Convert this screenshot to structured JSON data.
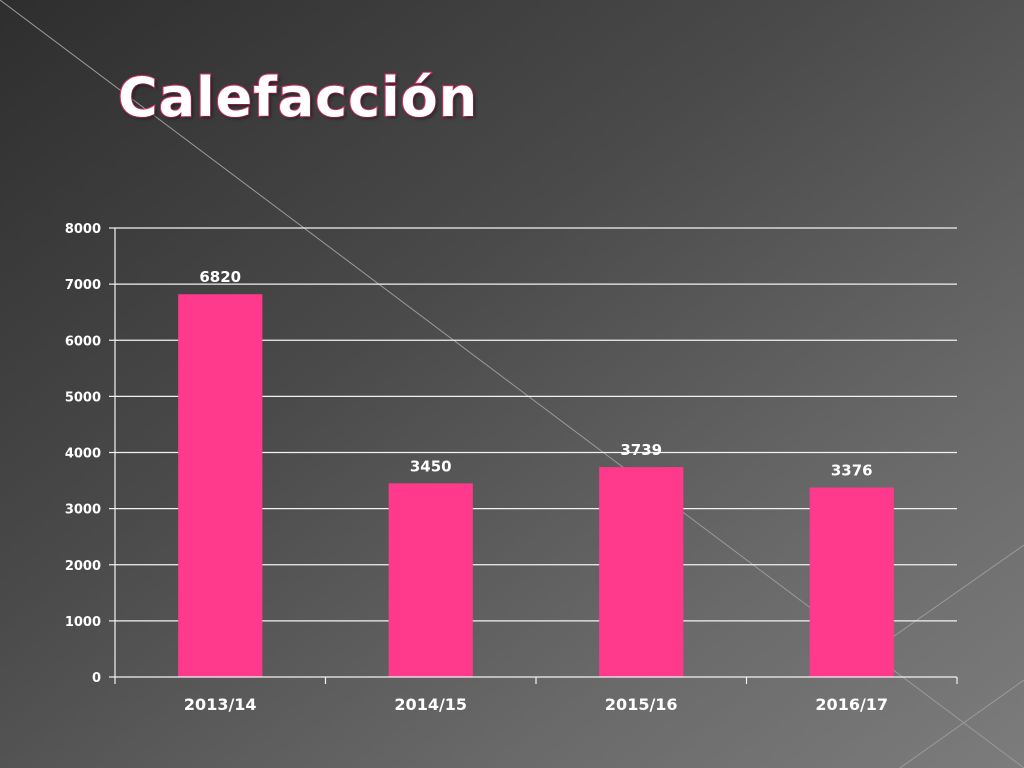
{
  "slide": {
    "title": "Calefacción"
  },
  "colors": {
    "bar": "#ff3a8c",
    "title_outline": "#e0306f",
    "gridline": "#f2f2f2",
    "text": "#ffffff"
  },
  "chart_data": {
    "type": "bar",
    "title": "",
    "xlabel": "",
    "ylabel": "",
    "categories": [
      "2013/14",
      "2014/15",
      "2015/16",
      "2016/17"
    ],
    "values": [
      6820,
      3450,
      3739,
      3376
    ],
    "data_labels": [
      "6820",
      "3450",
      "3739",
      "3376"
    ],
    "ylim": [
      0,
      8000
    ],
    "yticks": [
      0,
      1000,
      2000,
      3000,
      4000,
      5000,
      6000,
      7000,
      8000
    ],
    "grid": true,
    "legend": "none"
  }
}
